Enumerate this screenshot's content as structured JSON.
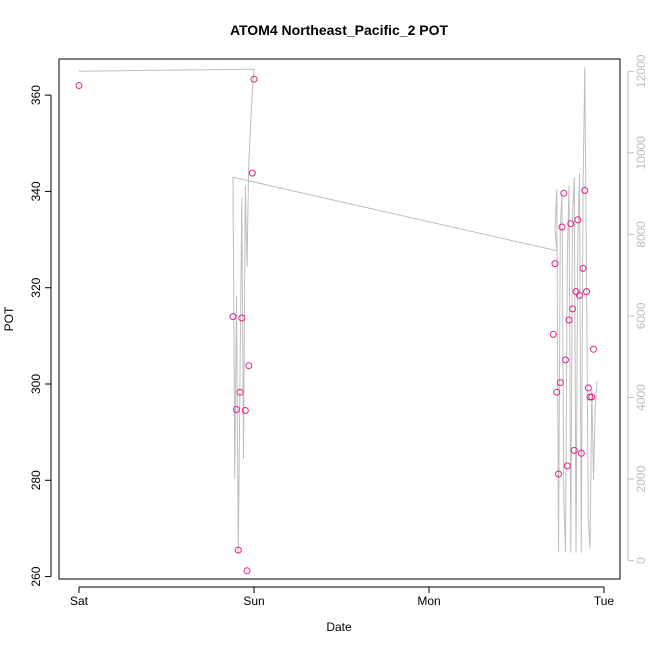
{
  "chart_data": {
    "type": "scatter",
    "title": "ATOM4 Northeast_Pacific_2 POT",
    "xlabel": "Date",
    "ylabel": "POT",
    "x_ticks": [
      "Sat",
      "Sun",
      "Mon",
      "Tue"
    ],
    "xlim": [
      0,
      3.05
    ],
    "ylim": [
      259.5,
      367.5
    ],
    "y_ticks": [
      260,
      280,
      300,
      320,
      340,
      360
    ],
    "y2lim": [
      -450,
      12300
    ],
    "y2_ticks": [
      0,
      2000,
      4000,
      6000,
      8000,
      10000,
      12000
    ],
    "grid": false,
    "series": [
      {
        "kind": "points",
        "color": "#e3218f",
        "marker": "open-circle",
        "x": [
          0.0,
          0.88,
          0.9,
          0.91,
          0.92,
          0.93,
          0.95,
          0.96,
          0.97,
          0.99,
          1.0,
          2.71,
          2.72,
          2.73,
          2.74,
          2.75,
          2.76,
          2.77,
          2.78,
          2.79,
          2.8,
          2.81,
          2.82,
          2.83,
          2.84,
          2.85,
          2.86,
          2.87,
          2.88,
          2.89,
          2.9,
          2.91,
          2.92,
          2.93,
          2.94
        ],
        "y": [
          362,
          314,
          294.7,
          265.5,
          298.3,
          313.7,
          294.5,
          261.2,
          303.8,
          343.8,
          363.3,
          310.3,
          325,
          298.3,
          281.3,
          300.3,
          332.6,
          339.6,
          305,
          283,
          313.3,
          333.3,
          315.6,
          286.2,
          319.2,
          334.1,
          318.4,
          285.6,
          324,
          340.2,
          319.2,
          299.2,
          297.3,
          297.3,
          307.2
        ]
      },
      {
        "kind": "line",
        "axis": "right",
        "color": "#bebebe",
        "x": [
          0.0,
          1.0,
          0.99,
          0.97,
          0.96,
          0.95,
          0.94,
          0.93,
          0.92,
          0.91,
          0.9,
          0.89,
          0.88,
          2.73,
          2.72,
          2.73,
          2.74,
          2.75,
          2.76,
          2.77,
          2.78,
          2.79,
          2.8,
          2.81,
          2.82,
          2.83,
          2.84,
          2.85,
          2.86,
          2.87,
          2.88,
          2.89,
          2.9,
          2.91,
          2.92,
          2.93,
          2.94,
          2.95,
          2.96
        ],
        "y": [
          12000,
          12050,
          11500,
          9800,
          7200,
          9200,
          2500,
          8900,
          4500,
          200,
          6500,
          2000,
          9400,
          7600,
          8100,
          9100,
          200,
          8200,
          9000,
          1500,
          200,
          7400,
          9200,
          200,
          8500,
          9400,
          200,
          7800,
          9500,
          200,
          9100,
          12100,
          7000,
          1000,
          300,
          4200,
          2000,
          3800,
          4400
        ]
      }
    ]
  }
}
